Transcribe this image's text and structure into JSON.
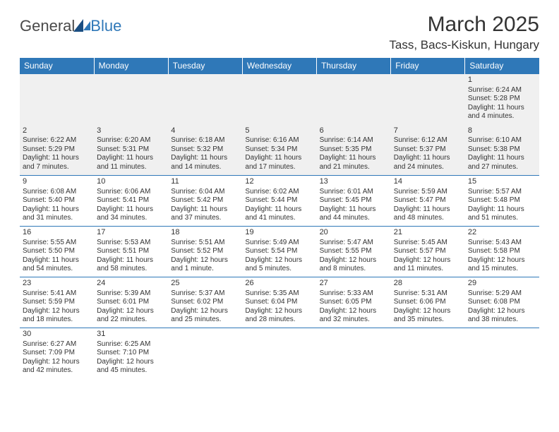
{
  "logo": {
    "text1": "General",
    "text2": "Blue"
  },
  "title": "March 2025",
  "location": "Tass, Bacs-Kiskun, Hungary",
  "colors": {
    "header_bg": "#2f78b8",
    "header_fg": "#ffffff",
    "border": "#2f78b8",
    "graybg": "#f0f0f0"
  },
  "weekdays": [
    "Sunday",
    "Monday",
    "Tuesday",
    "Wednesday",
    "Thursday",
    "Friday",
    "Saturday"
  ],
  "cells": [
    [
      null,
      null,
      null,
      null,
      null,
      null,
      {
        "n": "1",
        "sr": "6:24 AM",
        "ss": "5:28 PM",
        "dl": "11 hours and 4 minutes."
      }
    ],
    [
      {
        "n": "2",
        "sr": "6:22 AM",
        "ss": "5:29 PM",
        "dl": "11 hours and 7 minutes."
      },
      {
        "n": "3",
        "sr": "6:20 AM",
        "ss": "5:31 PM",
        "dl": "11 hours and 11 minutes."
      },
      {
        "n": "4",
        "sr": "6:18 AM",
        "ss": "5:32 PM",
        "dl": "11 hours and 14 minutes."
      },
      {
        "n": "5",
        "sr": "6:16 AM",
        "ss": "5:34 PM",
        "dl": "11 hours and 17 minutes."
      },
      {
        "n": "6",
        "sr": "6:14 AM",
        "ss": "5:35 PM",
        "dl": "11 hours and 21 minutes."
      },
      {
        "n": "7",
        "sr": "6:12 AM",
        "ss": "5:37 PM",
        "dl": "11 hours and 24 minutes."
      },
      {
        "n": "8",
        "sr": "6:10 AM",
        "ss": "5:38 PM",
        "dl": "11 hours and 27 minutes."
      }
    ],
    [
      {
        "n": "9",
        "sr": "6:08 AM",
        "ss": "5:40 PM",
        "dl": "11 hours and 31 minutes."
      },
      {
        "n": "10",
        "sr": "6:06 AM",
        "ss": "5:41 PM",
        "dl": "11 hours and 34 minutes."
      },
      {
        "n": "11",
        "sr": "6:04 AM",
        "ss": "5:42 PM",
        "dl": "11 hours and 37 minutes."
      },
      {
        "n": "12",
        "sr": "6:02 AM",
        "ss": "5:44 PM",
        "dl": "11 hours and 41 minutes."
      },
      {
        "n": "13",
        "sr": "6:01 AM",
        "ss": "5:45 PM",
        "dl": "11 hours and 44 minutes."
      },
      {
        "n": "14",
        "sr": "5:59 AM",
        "ss": "5:47 PM",
        "dl": "11 hours and 48 minutes."
      },
      {
        "n": "15",
        "sr": "5:57 AM",
        "ss": "5:48 PM",
        "dl": "11 hours and 51 minutes."
      }
    ],
    [
      {
        "n": "16",
        "sr": "5:55 AM",
        "ss": "5:50 PM",
        "dl": "11 hours and 54 minutes."
      },
      {
        "n": "17",
        "sr": "5:53 AM",
        "ss": "5:51 PM",
        "dl": "11 hours and 58 minutes."
      },
      {
        "n": "18",
        "sr": "5:51 AM",
        "ss": "5:52 PM",
        "dl": "12 hours and 1 minute."
      },
      {
        "n": "19",
        "sr": "5:49 AM",
        "ss": "5:54 PM",
        "dl": "12 hours and 5 minutes."
      },
      {
        "n": "20",
        "sr": "5:47 AM",
        "ss": "5:55 PM",
        "dl": "12 hours and 8 minutes."
      },
      {
        "n": "21",
        "sr": "5:45 AM",
        "ss": "5:57 PM",
        "dl": "12 hours and 11 minutes."
      },
      {
        "n": "22",
        "sr": "5:43 AM",
        "ss": "5:58 PM",
        "dl": "12 hours and 15 minutes."
      }
    ],
    [
      {
        "n": "23",
        "sr": "5:41 AM",
        "ss": "5:59 PM",
        "dl": "12 hours and 18 minutes."
      },
      {
        "n": "24",
        "sr": "5:39 AM",
        "ss": "6:01 PM",
        "dl": "12 hours and 22 minutes."
      },
      {
        "n": "25",
        "sr": "5:37 AM",
        "ss": "6:02 PM",
        "dl": "12 hours and 25 minutes."
      },
      {
        "n": "26",
        "sr": "5:35 AM",
        "ss": "6:04 PM",
        "dl": "12 hours and 28 minutes."
      },
      {
        "n": "27",
        "sr": "5:33 AM",
        "ss": "6:05 PM",
        "dl": "12 hours and 32 minutes."
      },
      {
        "n": "28",
        "sr": "5:31 AM",
        "ss": "6:06 PM",
        "dl": "12 hours and 35 minutes."
      },
      {
        "n": "29",
        "sr": "5:29 AM",
        "ss": "6:08 PM",
        "dl": "12 hours and 38 minutes."
      }
    ],
    [
      {
        "n": "30",
        "sr": "6:27 AM",
        "ss": "7:09 PM",
        "dl": "12 hours and 42 minutes."
      },
      {
        "n": "31",
        "sr": "6:25 AM",
        "ss": "7:10 PM",
        "dl": "12 hours and 45 minutes."
      },
      null,
      null,
      null,
      null,
      null
    ]
  ],
  "labels": {
    "sunrise": "Sunrise:",
    "sunset": "Sunset:",
    "daylight": "Daylight:"
  }
}
